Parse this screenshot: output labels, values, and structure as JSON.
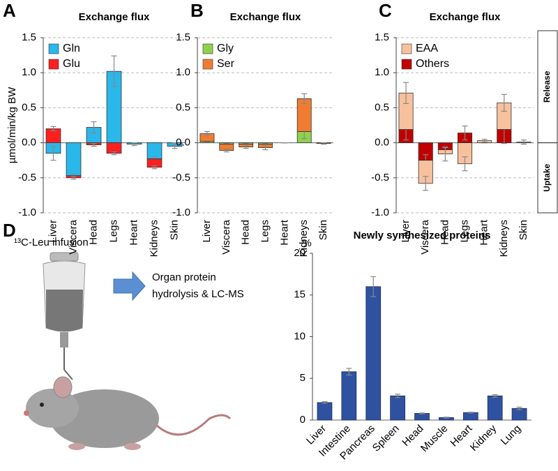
{
  "panel_labels": [
    "A",
    "B",
    "C",
    "D"
  ],
  "diagram": {
    "infusion": "¹³C-Leu infusion",
    "process": [
      "Organ protein",
      "hydrolysis & LC-MS"
    ]
  },
  "chart_data": [
    {
      "type": "stacked-bar",
      "title": "Exchange flux",
      "y_label": "µmol/min/kg BW",
      "categories": [
        "Liver",
        "Viscera",
        "Head",
        "Legs",
        "Heart",
        "Kidneys",
        "Skin"
      ],
      "series": [
        {
          "name": "Gln",
          "color": "#2ab7ea",
          "values": [
            -0.15,
            -0.47,
            0.22,
            1.02,
            -0.02,
            -0.23,
            -0.05
          ],
          "errors": [
            0.1,
            0.02,
            0.08,
            0.22,
            0.02,
            0.03,
            0.03
          ]
        },
        {
          "name": "Glu",
          "color": "#ff1f1f",
          "values": [
            0.2,
            -0.03,
            -0.03,
            -0.15,
            0,
            -0.12,
            0
          ],
          "errors": [
            0.03,
            0.02,
            0.02,
            0.02,
            0,
            0.02,
            0
          ]
        }
      ],
      "ylim": [
        -1,
        1.5
      ],
      "yticks": [
        {
          "value": -1,
          "label": "-1.0"
        },
        {
          "value": -0.5,
          "label": "-0.5"
        },
        {
          "value": 0,
          "label": "0.0"
        },
        {
          "value": 0.5,
          "label": "0.5"
        },
        {
          "value": 1,
          "label": "1.0"
        },
        {
          "value": 1.5,
          "label": "1.5"
        }
      ],
      "grid": true,
      "legend": "upper left"
    },
    {
      "type": "stacked-bar",
      "title": "Exchange flux",
      "categories": [
        "Liver",
        "Viscera",
        "Head",
        "Legs",
        "Heart",
        "Kidneys",
        "Skin"
      ],
      "series": [
        {
          "name": "Gly",
          "color": "#8fd14f",
          "values": [
            0.02,
            -0.02,
            -0.02,
            -0.02,
            0,
            0.16,
            0
          ],
          "errors": [
            0.01,
            0.01,
            0.01,
            0.01,
            0,
            0.1,
            0
          ]
        },
        {
          "name": "Ser",
          "color": "#ef7d31",
          "values": [
            0.11,
            -0.09,
            -0.04,
            -0.05,
            0,
            0.47,
            -0.01
          ],
          "errors": [
            0.03,
            0.02,
            0.02,
            0.03,
            0,
            0.07,
            0.01
          ]
        }
      ],
      "ylim": [
        -1,
        1.5
      ],
      "yticks": [
        {
          "value": -1,
          "label": "-1.0"
        },
        {
          "value": -0.5,
          "label": "-0.5"
        },
        {
          "value": 0,
          "label": "0.0"
        },
        {
          "value": 0.5,
          "label": "0.5"
        },
        {
          "value": 1,
          "label": "1.0"
        },
        {
          "value": 1.5,
          "label": "1.5"
        }
      ],
      "grid": true,
      "legend": "upper left"
    },
    {
      "type": "stacked-bar",
      "title": "Exchange flux",
      "categories": [
        "Liver",
        "Viscera",
        "Head",
        "Legs",
        "Heart",
        "Kidneys",
        "Skin"
      ],
      "series": [
        {
          "name": "Others",
          "color": "#c00000",
          "values": [
            0.19,
            -0.25,
            -0.1,
            0.14,
            0,
            0.19,
            0
          ],
          "errors": [
            0.15,
            0.08,
            0.03,
            0.1,
            0,
            0.2,
            0
          ]
        },
        {
          "name": "EAA",
          "color": "#f8c19e",
          "values": [
            0.52,
            -0.33,
            -0.06,
            -0.3,
            0.03,
            0.38,
            0.01
          ],
          "errors": [
            0.15,
            0.1,
            0.1,
            0.1,
            0.02,
            0.12,
            0.03
          ]
        }
      ],
      "ylim": [
        -1,
        1.5
      ],
      "yticks": [
        {
          "value": -1,
          "label": "-1.0"
        },
        {
          "value": -0.5,
          "label": "-0.5"
        },
        {
          "value": 0,
          "label": "0.0"
        },
        {
          "value": 0.5,
          "label": "0.5"
        },
        {
          "value": 1,
          "label": "1.0"
        },
        {
          "value": 1.5,
          "label": "1.5"
        }
      ],
      "grid": true,
      "legend": "upper left",
      "legend_reversed": true,
      "annotations": [
        "Release",
        "Uptake"
      ]
    },
    {
      "type": "bar",
      "title": "Newly synthesized proteins",
      "y_label": "%",
      "categories": [
        "Liver",
        "Intestine",
        "Pancreas",
        "Spleen",
        "Head",
        "Muscle",
        "Heart",
        "Kidney",
        "Lung"
      ],
      "values": [
        2.1,
        5.8,
        16,
        2.9,
        0.8,
        0.3,
        0.9,
        2.9,
        1.4
      ],
      "errors": [
        0.1,
        0.4,
        1.2,
        0.2,
        0.05,
        0.05,
        0.05,
        0.15,
        0.15
      ],
      "color": "#2f52a0",
      "ylim": [
        0,
        20
      ],
      "yticks": [
        0,
        5,
        10,
        15,
        20
      ],
      "grid": false
    }
  ]
}
